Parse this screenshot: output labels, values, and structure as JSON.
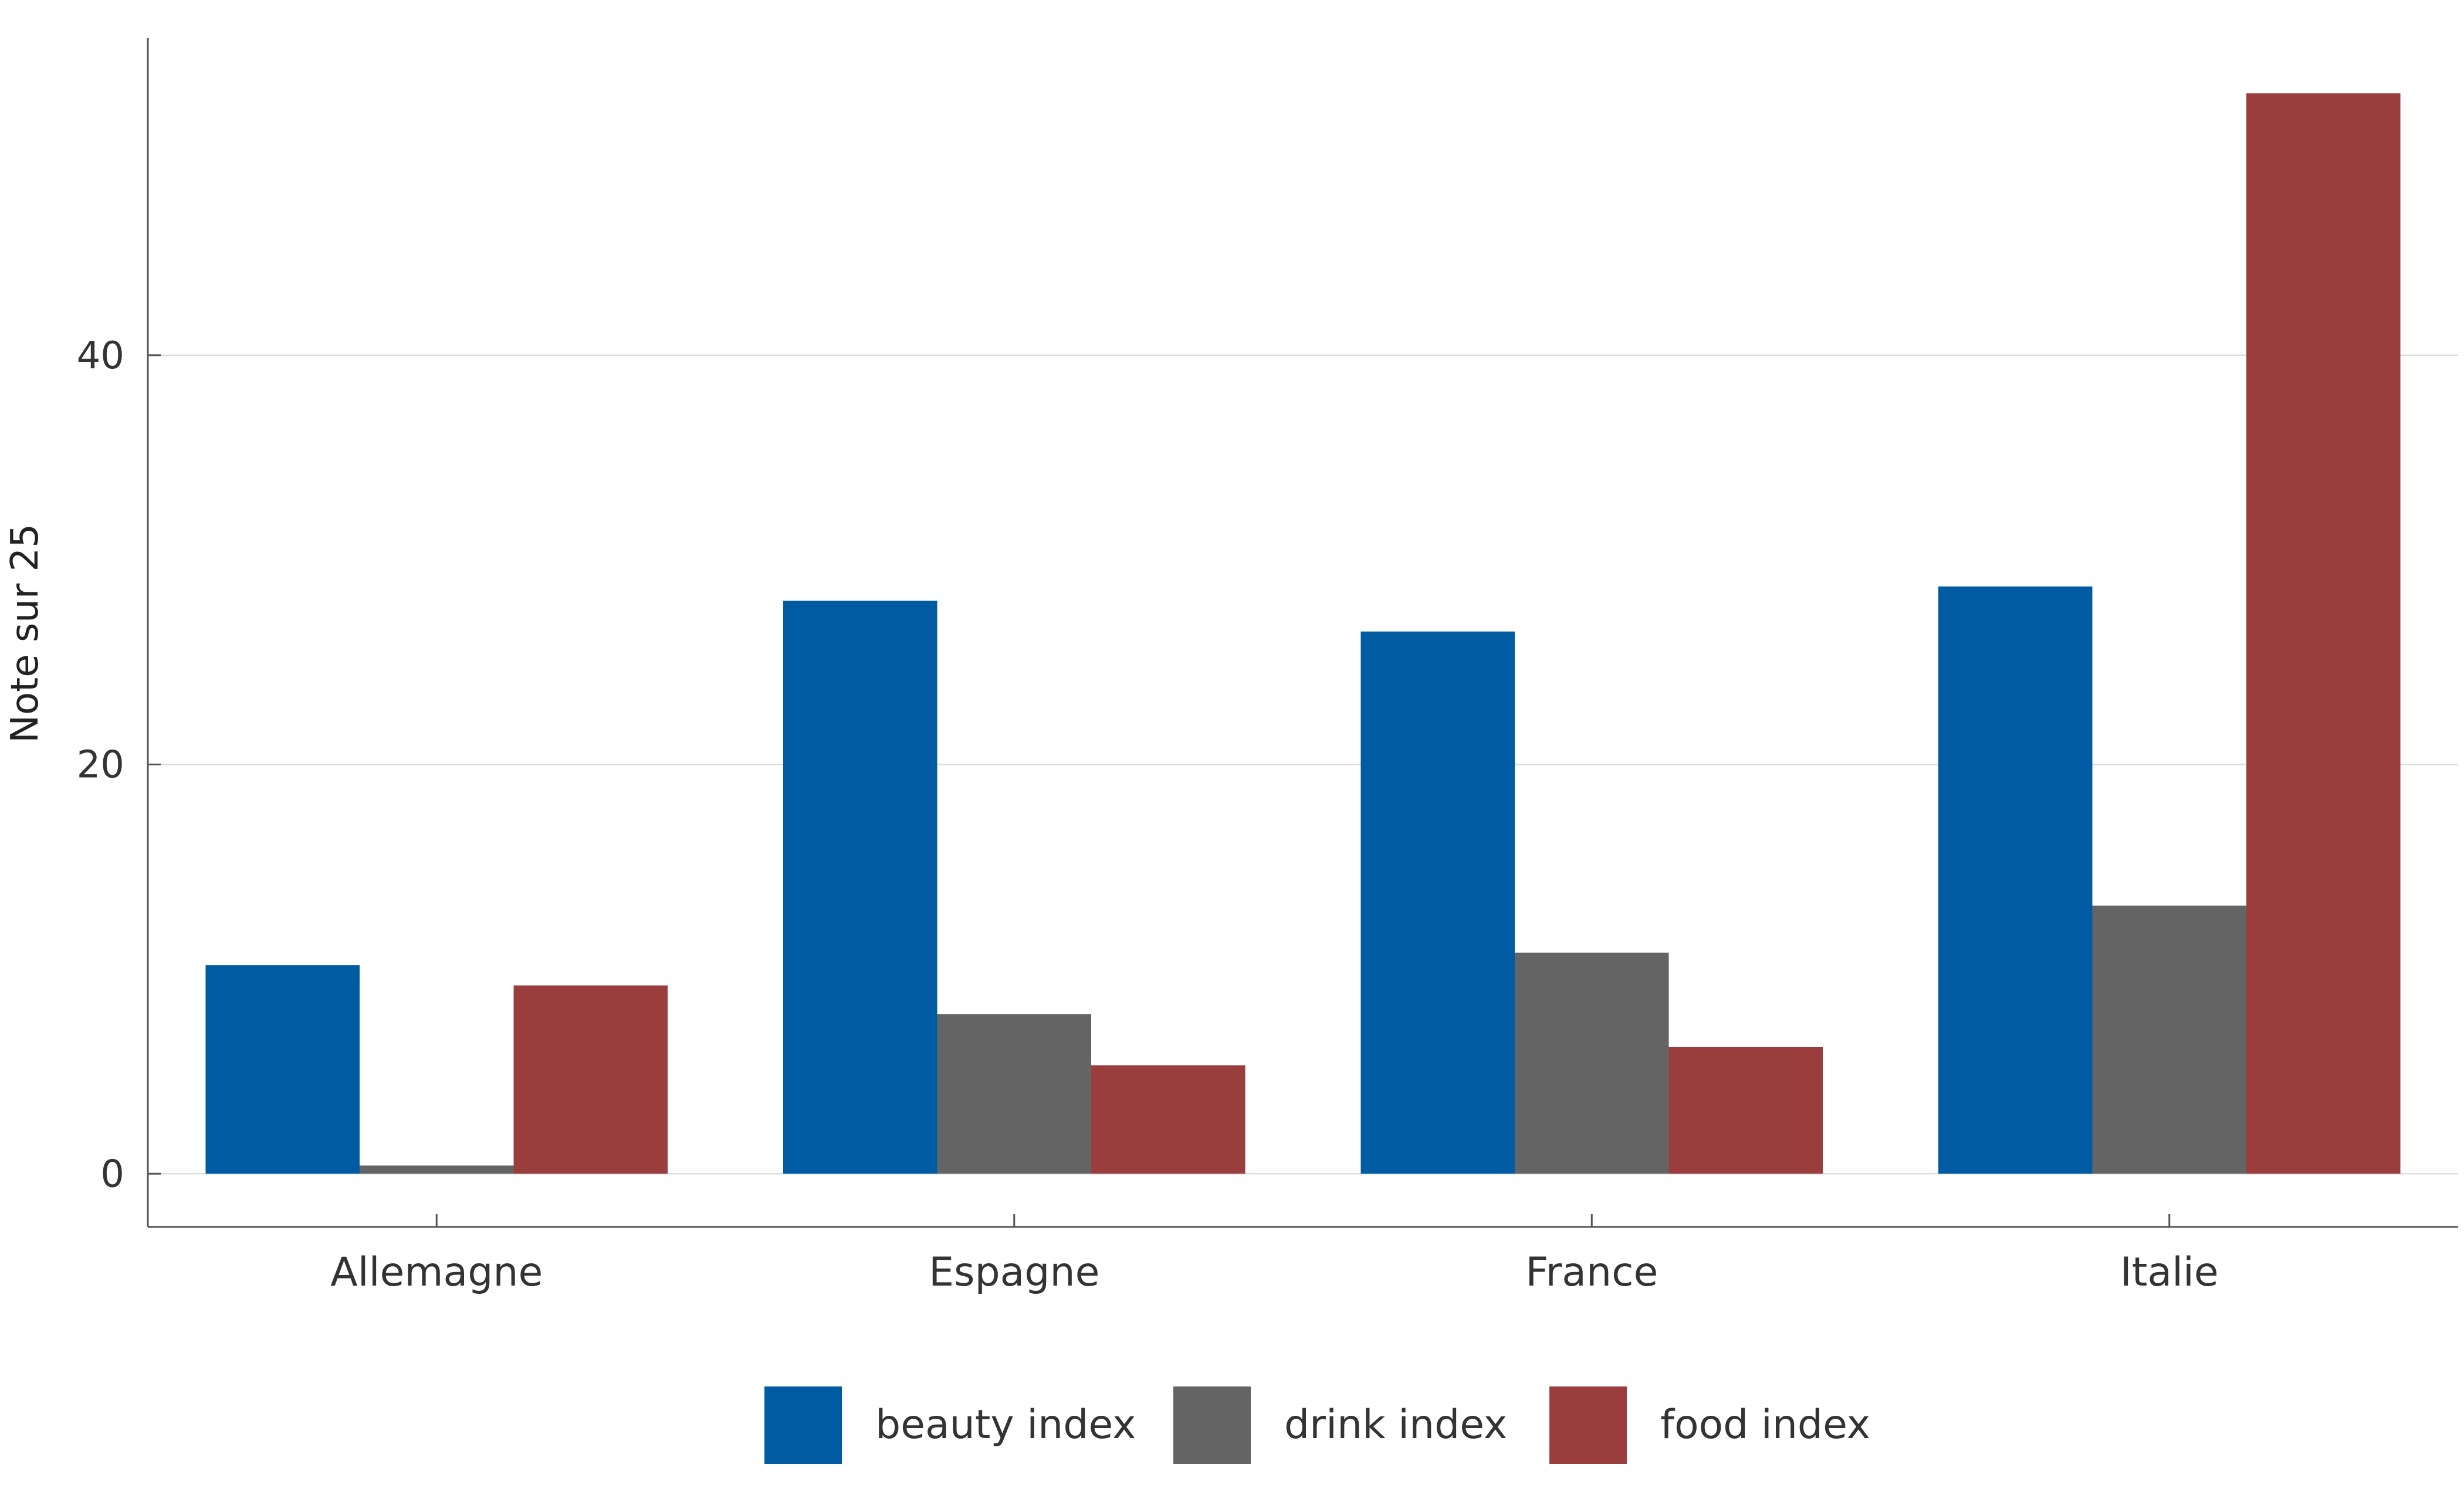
{
  "chart_data": {
    "type": "bar",
    "title": "",
    "xlabel": "",
    "ylabel": "Note sur 25",
    "categories": [
      "Allemagne",
      "Espagne",
      "France",
      "Italie"
    ],
    "series": [
      {
        "name": "beauty index",
        "color": "#005ba3",
        "values": [
          10.2,
          28.0,
          26.5,
          28.7
        ]
      },
      {
        "name": "drink index",
        "color": "#646464",
        "values": [
          0.4,
          7.8,
          10.8,
          13.1
        ]
      },
      {
        "name": "food index",
        "color": "#993d3d",
        "values": [
          9.2,
          5.3,
          6.2,
          52.8
        ]
      }
    ],
    "ylim": [
      -2.6,
      55.5
    ],
    "yticks": [
      0,
      20,
      40
    ],
    "grid": true,
    "legend_position": "bottom"
  }
}
